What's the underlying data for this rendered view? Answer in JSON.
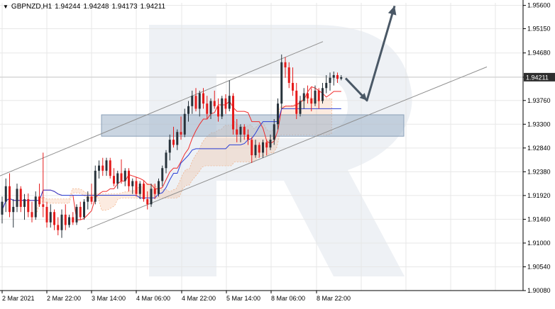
{
  "header": {
    "symbol_tf": "GBPNZD,H1",
    "ohlc": [
      "1.94244",
      "1.94248",
      "1.94173",
      "1.94211"
    ]
  },
  "colors": {
    "bull": "#27323a",
    "bear": "#e51c1c",
    "tenkan": "#ef2b2b",
    "kijun": "#2a3fd6",
    "cloud": "#f0a373",
    "channel": "#8f8f8f",
    "zone": "#9fb2c8",
    "arrow": "#4a5866",
    "grid": "#e7e7e7",
    "price_tag_bg": "#2e2e2e"
  },
  "chart_data": {
    "type": "candlestick",
    "title": "GBPNZD,H1",
    "ylim": [
      1.9008,
      1.9565
    ],
    "y_ticks": [
      "1.95600",
      "1.95150",
      "1.94680",
      "1.94211",
      "1.93760",
      "1.93300",
      "1.92840",
      "1.92380",
      "1.91920",
      "1.91460",
      "1.91000",
      "1.90540",
      "1.90080"
    ],
    "x_ticks": [
      "2 Mar 2021",
      "2 Mar 22:00",
      "3 Mar 14:00",
      "4 Mar 06:00",
      "4 Mar 22:00",
      "5 Mar 14:00",
      "8 Mar 06:00",
      "8 Mar 22:00"
    ],
    "current_price": "1.94211",
    "candles": [
      [
        1.9155,
        1.919,
        1.9138,
        1.918
      ],
      [
        1.918,
        1.9225,
        1.916,
        1.921
      ],
      [
        1.921,
        1.9235,
        1.915,
        1.916
      ],
      [
        1.916,
        1.9185,
        1.913,
        1.917
      ],
      [
        1.917,
        1.9215,
        1.916,
        1.9205
      ],
      [
        1.9205,
        1.921,
        1.916,
        1.917
      ],
      [
        1.917,
        1.9195,
        1.9145,
        1.9185
      ],
      [
        1.9185,
        1.9196,
        1.915,
        1.916
      ],
      [
        1.916,
        1.918,
        1.914,
        1.915
      ],
      [
        1.915,
        1.92,
        1.9145,
        1.919
      ],
      [
        1.919,
        1.9215,
        1.917,
        1.9175
      ],
      [
        1.9175,
        1.9275,
        1.915,
        1.917
      ],
      [
        1.917,
        1.918,
        1.913,
        1.914
      ],
      [
        1.914,
        1.9175,
        1.913,
        1.916
      ],
      [
        1.916,
        1.9165,
        1.9125,
        1.9135
      ],
      [
        1.9135,
        1.915,
        1.9115,
        1.9125
      ],
      [
        1.9125,
        1.9165,
        1.911,
        1.9155
      ],
      [
        1.9155,
        1.9175,
        1.9125,
        1.9135
      ],
      [
        1.9135,
        1.9155,
        1.913,
        1.915
      ],
      [
        1.915,
        1.916,
        1.9135,
        1.914
      ],
      [
        1.914,
        1.9175,
        1.9135,
        1.917
      ],
      [
        1.917,
        1.918,
        1.9145,
        1.915
      ],
      [
        1.915,
        1.9185,
        1.9145,
        1.918
      ],
      [
        1.918,
        1.92,
        1.9165,
        1.919
      ],
      [
        1.919,
        1.9215,
        1.9175,
        1.918
      ],
      [
        1.918,
        1.925,
        1.9175,
        1.924
      ],
      [
        1.924,
        1.926,
        1.9225,
        1.925
      ],
      [
        1.925,
        1.9265,
        1.923,
        1.924
      ],
      [
        1.924,
        1.9265,
        1.923,
        1.926
      ],
      [
        1.926,
        1.9265,
        1.9225,
        1.923
      ],
      [
        1.923,
        1.9245,
        1.921,
        1.9215
      ],
      [
        1.9215,
        1.924,
        1.9205,
        1.9235
      ],
      [
        1.9235,
        1.9262,
        1.9215,
        1.922
      ],
      [
        1.922,
        1.9245,
        1.921,
        1.924
      ],
      [
        1.924,
        1.9245,
        1.92,
        1.921
      ],
      [
        1.921,
        1.9225,
        1.9195,
        1.922
      ],
      [
        1.922,
        1.9228,
        1.919,
        1.9195
      ],
      [
        1.9195,
        1.922,
        1.9185,
        1.9215
      ],
      [
        1.9215,
        1.922,
        1.918,
        1.9185
      ],
      [
        1.9185,
        1.92,
        1.9165,
        1.9175
      ],
      [
        1.9175,
        1.9215,
        1.917,
        1.9205
      ],
      [
        1.9205,
        1.9215,
        1.9185,
        1.9195
      ],
      [
        1.9195,
        1.9225,
        1.919,
        1.922
      ],
      [
        1.922,
        1.925,
        1.921,
        1.9245
      ],
      [
        1.9245,
        1.928,
        1.9235,
        1.9275
      ],
      [
        1.9275,
        1.931,
        1.926,
        1.93
      ],
      [
        1.93,
        1.9325,
        1.9285,
        1.929
      ],
      [
        1.929,
        1.932,
        1.928,
        1.9315
      ],
      [
        1.9315,
        1.9345,
        1.93,
        1.931
      ],
      [
        1.931,
        1.936,
        1.9305,
        1.935
      ],
      [
        1.935,
        1.9375,
        1.9335,
        1.9365
      ],
      [
        1.9365,
        1.9395,
        1.935,
        1.9385
      ],
      [
        1.9385,
        1.94,
        1.9355,
        1.936
      ],
      [
        1.936,
        1.9395,
        1.9345,
        1.939
      ],
      [
        1.939,
        1.94,
        1.936,
        1.937
      ],
      [
        1.937,
        1.9385,
        1.934,
        1.935
      ],
      [
        1.935,
        1.938,
        1.934,
        1.9375
      ],
      [
        1.9375,
        1.9395,
        1.936,
        1.9365
      ],
      [
        1.9365,
        1.938,
        1.9335,
        1.9345
      ],
      [
        1.9345,
        1.9385,
        1.934,
        1.938
      ],
      [
        1.938,
        1.9388,
        1.935,
        1.936
      ],
      [
        1.936,
        1.9415,
        1.9355,
        1.9385
      ],
      [
        1.9385,
        1.939,
        1.931,
        1.932
      ],
      [
        1.932,
        1.934,
        1.9295,
        1.931
      ],
      [
        1.931,
        1.933,
        1.9295,
        1.9325
      ],
      [
        1.9325,
        1.933,
        1.93,
        1.931
      ],
      [
        1.931,
        1.932,
        1.929,
        1.93
      ],
      [
        1.93,
        1.9305,
        1.9255,
        1.927
      ],
      [
        1.927,
        1.93,
        1.9265,
        1.929
      ],
      [
        1.929,
        1.9295,
        1.9265,
        1.9275
      ],
      [
        1.9275,
        1.93,
        1.9265,
        1.9295
      ],
      [
        1.9295,
        1.93,
        1.927,
        1.9285
      ],
      [
        1.9285,
        1.931,
        1.928,
        1.93
      ],
      [
        1.93,
        1.934,
        1.929,
        1.933
      ],
      [
        1.933,
        1.938,
        1.932,
        1.937
      ],
      [
        1.937,
        1.9465,
        1.936,
        1.945
      ],
      [
        1.945,
        1.946,
        1.942,
        1.944
      ],
      [
        1.944,
        1.945,
        1.94,
        1.941
      ],
      [
        1.941,
        1.944,
        1.9385,
        1.9395
      ],
      [
        1.9395,
        1.941,
        1.934,
        1.935
      ],
      [
        1.935,
        1.9385,
        1.9345,
        1.9375
      ],
      [
        1.9375,
        1.94,
        1.936,
        1.939
      ],
      [
        1.939,
        1.9405,
        1.937,
        1.938
      ],
      [
        1.938,
        1.94,
        1.9355,
        1.937
      ],
      [
        1.937,
        1.9405,
        1.9365,
        1.9395
      ],
      [
        1.9395,
        1.94,
        1.936,
        1.9375
      ],
      [
        1.9375,
        1.941,
        1.937,
        1.94
      ],
      [
        1.94,
        1.9425,
        1.939,
        1.941
      ],
      [
        1.941,
        1.943,
        1.9395,
        1.942
      ],
      [
        1.942,
        1.9432,
        1.9405,
        1.9425
      ],
      [
        1.9425,
        1.943,
        1.941,
        1.9418
      ],
      [
        1.9418,
        1.9425,
        1.9415,
        1.9421
      ]
    ],
    "candle_x_start": 3,
    "candle_x_step": 5.25,
    "annotations": {
      "zone": [
        1.9315,
        1.934
      ],
      "channel_upper": [
        [
          0.0,
          1.924
        ],
        [
          1.9491,
          1.949
        ]
      ],
      "channel_lower": [
        [
          1.9127,
          1.9127
        ],
        [
          1.9441,
          1.9441
        ]
      ],
      "forecast_arrow": [
        "1.94211",
        "1.93760",
        "1.95600"
      ]
    }
  }
}
